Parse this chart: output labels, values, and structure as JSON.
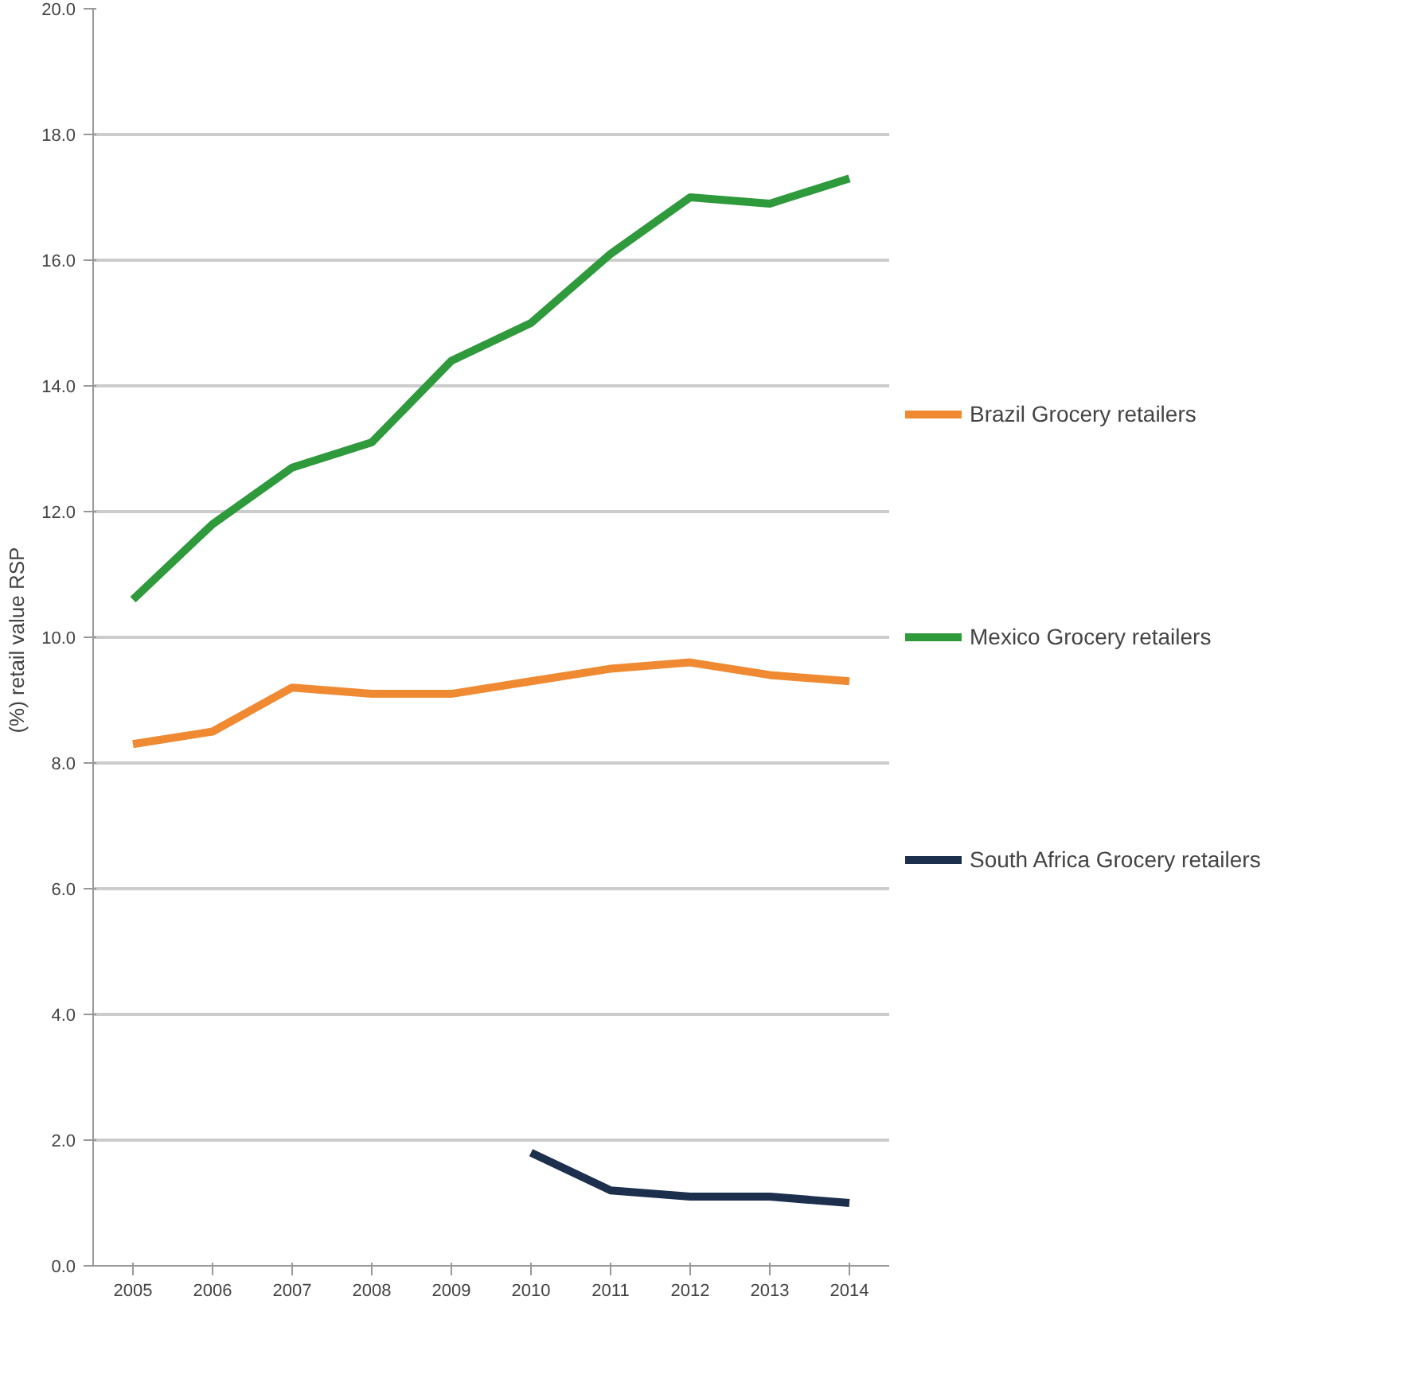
{
  "chart_data": {
    "type": "line",
    "ylabel": "(%)  retail value RSP",
    "categories": [
      "2005",
      "2006",
      "2007",
      "2008",
      "2009",
      "2010",
      "2011",
      "2012",
      "2013",
      "2014"
    ],
    "series": [
      {
        "name": "Brazil Grocery retailers",
        "color": "#f08a32",
        "values": [
          8.3,
          8.5,
          9.2,
          9.1,
          9.1,
          9.3,
          9.5,
          9.6,
          9.4,
          9.3
        ]
      },
      {
        "name": "Mexico Grocery retailers",
        "color": "#2f9a3c",
        "values": [
          10.6,
          11.8,
          12.7,
          13.1,
          14.4,
          15.0,
          16.1,
          17.0,
          16.9,
          17.3
        ]
      },
      {
        "name": "South Africa Grocery retailers",
        "color": "#1c2f4d",
        "values": [
          null,
          null,
          null,
          null,
          null,
          1.8,
          1.2,
          1.1,
          1.1,
          1.0
        ]
      }
    ],
    "ylim": [
      0,
      20
    ],
    "yticks": [
      {
        "value": 0,
        "label": "0.0"
      },
      {
        "value": 2,
        "label": "2.0"
      },
      {
        "value": 4,
        "label": "4.0"
      },
      {
        "value": 6,
        "label": "6.0"
      },
      {
        "value": 8,
        "label": "8.0"
      },
      {
        "value": 10,
        "label": "10.0"
      },
      {
        "value": 12,
        "label": "12.0"
      },
      {
        "value": 14,
        "label": "14.0"
      },
      {
        "value": 16,
        "label": "16.0"
      },
      {
        "value": 18,
        "label": "18.0"
      },
      {
        "value": 20,
        "label": "20.0"
      }
    ],
    "grid": "y",
    "legend": "right",
    "line_style": "solid",
    "marker": "none"
  }
}
